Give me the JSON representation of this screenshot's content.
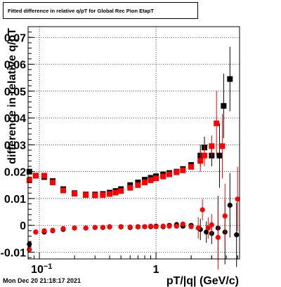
{
  "title": "Fitted difference in relative q/pT for Global Rec Pion EtapT",
  "timestamp": "Mon Dec 20 21:18:17 2021",
  "chart_data": {
    "type": "scatter",
    "title": "Fitted difference in relative q/pT for Global Rec Pion EtapT",
    "xlabel": "pT/|q| (GeV/c)",
    "ylabel": "difference in relative q/pT",
    "x_scale": "log",
    "xlim": [
      0.08,
      5.2
    ],
    "ylim": [
      -0.0125,
      0.074
    ],
    "grid": true,
    "x_tick_labels": [
      "10^-1",
      "1"
    ],
    "y_ticks": [
      -0.01,
      0,
      0.01,
      0.02,
      0.03,
      0.04,
      0.05,
      0.06,
      0.07
    ],
    "y_tick_labels": [
      "-0.01",
      "0",
      "0.01",
      "0.02",
      "0.03",
      "0.04",
      "0.05",
      "0.06",
      "0.07"
    ],
    "series": [
      {
        "color": "#000000",
        "marker": "square",
        "points": [
          {
            "x": 0.082,
            "y": 0.02
          },
          {
            "x": 0.093,
            "y": 0.0185
          },
          {
            "x": 0.11,
            "y": 0.018
          },
          {
            "x": 0.13,
            "y": 0.0165
          },
          {
            "x": 0.16,
            "y": 0.0135
          },
          {
            "x": 0.2,
            "y": 0.012
          },
          {
            "x": 0.25,
            "y": 0.0115
          },
          {
            "x": 0.3,
            "y": 0.0115
          },
          {
            "x": 0.35,
            "y": 0.0117
          },
          {
            "x": 0.4,
            "y": 0.0122
          },
          {
            "x": 0.45,
            "y": 0.0128
          },
          {
            "x": 0.5,
            "y": 0.0135
          },
          {
            "x": 0.6,
            "y": 0.015
          },
          {
            "x": 0.7,
            "y": 0.016
          },
          {
            "x": 0.8,
            "y": 0.017
          },
          {
            "x": 0.9,
            "y": 0.0177
          },
          {
            "x": 1.0,
            "y": 0.0183
          },
          {
            "x": 1.15,
            "y": 0.019
          },
          {
            "x": 1.3,
            "y": 0.0195
          },
          {
            "x": 1.5,
            "y": 0.02
          },
          {
            "x": 1.7,
            "y": 0.021
          },
          {
            "x": 2.0,
            "y": 0.0225
          },
          {
            "x": 2.4,
            "y": 0.026
          },
          {
            "x": 2.6,
            "y": 0.029
          },
          {
            "x": 3.0,
            "y": 0.026
          },
          {
            "x": 3.5,
            "y": 0.026
          },
          {
            "x": 3.8,
            "y": 0.0445
          },
          {
            "x": 4.3,
            "y": 0.0545
          }
        ]
      },
      {
        "color": "#ff0000",
        "marker": "square",
        "points": [
          {
            "x": 0.082,
            "y": 0.0168
          },
          {
            "x": 0.093,
            "y": 0.0185
          },
          {
            "x": 0.11,
            "y": 0.0185
          },
          {
            "x": 0.13,
            "y": 0.016
          },
          {
            "x": 0.16,
            "y": 0.013
          },
          {
            "x": 0.2,
            "y": 0.0118
          },
          {
            "x": 0.25,
            "y": 0.0113
          },
          {
            "x": 0.3,
            "y": 0.0112
          },
          {
            "x": 0.35,
            "y": 0.0113
          },
          {
            "x": 0.4,
            "y": 0.0117
          },
          {
            "x": 0.45,
            "y": 0.0122
          },
          {
            "x": 0.5,
            "y": 0.0128
          },
          {
            "x": 0.6,
            "y": 0.014
          },
          {
            "x": 0.7,
            "y": 0.015
          },
          {
            "x": 0.8,
            "y": 0.016
          },
          {
            "x": 0.9,
            "y": 0.0168
          },
          {
            "x": 1.0,
            "y": 0.0175
          },
          {
            "x": 1.15,
            "y": 0.0182
          },
          {
            "x": 1.3,
            "y": 0.019
          },
          {
            "x": 1.5,
            "y": 0.0198
          },
          {
            "x": 1.7,
            "y": 0.0205
          },
          {
            "x": 2.0,
            "y": 0.0218
          },
          {
            "x": 2.4,
            "y": 0.024
          },
          {
            "x": 2.6,
            "y": 0.026
          },
          {
            "x": 3.0,
            "y": 0.0295
          },
          {
            "x": 3.3,
            "y": 0.038
          },
          {
            "x": 3.7,
            "y": 0.0295
          }
        ]
      },
      {
        "color": "#000000",
        "marker": "circle",
        "points": [
          {
            "x": 0.082,
            "y": -0.007
          },
          {
            "x": 0.093,
            "y": -0.0025
          },
          {
            "x": 0.11,
            "y": -0.0025
          },
          {
            "x": 0.13,
            "y": -0.002
          },
          {
            "x": 0.16,
            "y": -0.0015
          },
          {
            "x": 0.2,
            "y": -0.001
          },
          {
            "x": 0.25,
            "y": -0.001
          },
          {
            "x": 0.3,
            "y": -0.0008
          },
          {
            "x": 0.35,
            "y": -0.0008
          },
          {
            "x": 0.4,
            "y": -0.0005
          },
          {
            "x": 0.5,
            "y": -0.0005
          },
          {
            "x": 0.6,
            "y": -0.0008
          },
          {
            "x": 0.7,
            "y": -0.0005
          },
          {
            "x": 0.8,
            "y": -0.0005
          },
          {
            "x": 0.9,
            "y": -0.0005
          },
          {
            "x": 1.0,
            "y": -0.0003
          },
          {
            "x": 1.15,
            "y": -0.0005
          },
          {
            "x": 1.3,
            "y": 0.0
          },
          {
            "x": 1.5,
            "y": 0.0003
          },
          {
            "x": 1.7,
            "y": -0.0003
          },
          {
            "x": 2.0,
            "y": 0.0
          },
          {
            "x": 2.4,
            "y": -0.0015
          },
          {
            "x": 2.7,
            "y": -0.0025
          },
          {
            "x": 3.0,
            "y": -0.003
          },
          {
            "x": 3.4,
            "y": -0.001
          },
          {
            "x": 3.9,
            "y": -0.0025
          },
          {
            "x": 4.3,
            "y": 0.0075
          },
          {
            "x": 4.9,
            "y": -0.0035
          }
        ]
      },
      {
        "color": "#ff0000",
        "marker": "circle",
        "points": [
          {
            "x": 0.082,
            "y": -0.009
          },
          {
            "x": 0.093,
            "y": -0.0025
          },
          {
            "x": 0.11,
            "y": -0.002
          },
          {
            "x": 0.13,
            "y": -0.0018
          },
          {
            "x": 0.16,
            "y": -0.0012
          },
          {
            "x": 0.2,
            "y": -0.001
          },
          {
            "x": 0.25,
            "y": -0.001
          },
          {
            "x": 0.3,
            "y": -0.0008
          },
          {
            "x": 0.35,
            "y": -0.0008
          },
          {
            "x": 0.4,
            "y": -0.0006
          },
          {
            "x": 0.5,
            "y": -0.0006
          },
          {
            "x": 0.6,
            "y": -0.0006
          },
          {
            "x": 0.7,
            "y": -0.0006
          },
          {
            "x": 0.8,
            "y": -0.0005
          },
          {
            "x": 0.9,
            "y": -0.0003
          },
          {
            "x": 1.0,
            "y": -0.0005
          },
          {
            "x": 1.15,
            "y": -0.0003
          },
          {
            "x": 1.3,
            "y": -0.0003
          },
          {
            "x": 1.5,
            "y": -0.0003
          },
          {
            "x": 1.7,
            "y": 0.0005
          },
          {
            "x": 2.0,
            "y": -0.0005
          },
          {
            "x": 2.3,
            "y": -0.001
          },
          {
            "x": 2.5,
            "y": 0.0058
          },
          {
            "x": 2.8,
            "y": -0.001
          },
          {
            "x": 3.0,
            "y": 0.0002
          },
          {
            "x": 3.4,
            "y": -0.0045
          },
          {
            "x": 3.9,
            "y": 0.0035
          },
          {
            "x": 5.0,
            "y": 0.0098
          }
        ]
      }
    ]
  }
}
